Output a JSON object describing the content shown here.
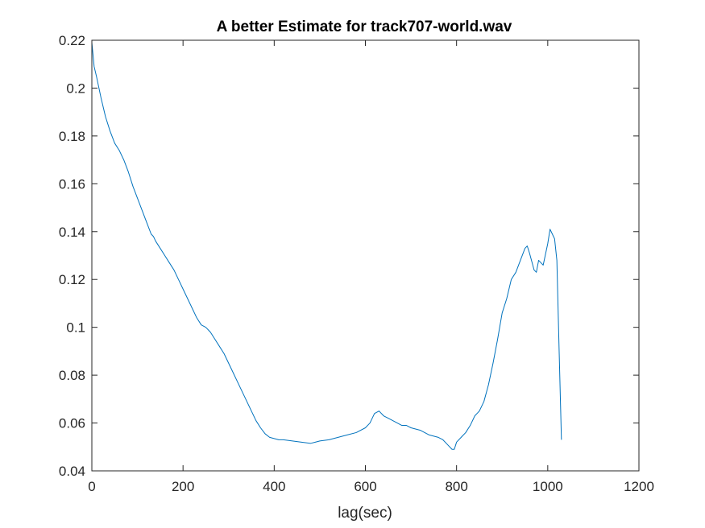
{
  "chart_data": {
    "type": "line",
    "title": "A better Estimate for track707-world.wav",
    "xlabel": "lag(sec)",
    "ylabel": "",
    "xlim": [
      0,
      1200
    ],
    "ylim": [
      0.04,
      0.22
    ],
    "xticks": [
      0,
      200,
      400,
      600,
      800,
      1000,
      1200
    ],
    "xtick_labels": [
      "0",
      "200",
      "400",
      "600",
      "800",
      "1000",
      "1200"
    ],
    "yticks": [
      0.04,
      0.06,
      0.08,
      0.1,
      0.12,
      0.14,
      0.16,
      0.18,
      0.2,
      0.22
    ],
    "ytick_labels": [
      "0.04",
      "0.06",
      "0.08",
      "0.1",
      "0.12",
      "0.14",
      "0.16",
      "0.18",
      "0.2",
      "0.22"
    ],
    "grid": false,
    "line_color": "#0072BD",
    "series": [
      {
        "x": [
          0,
          5,
          10,
          20,
          30,
          40,
          50,
          60,
          70,
          80,
          90,
          100,
          110,
          120,
          130,
          135,
          140,
          150,
          160,
          170,
          180,
          190,
          200,
          210,
          220,
          230,
          240,
          250,
          260,
          270,
          280,
          290,
          300,
          310,
          320,
          330,
          340,
          350,
          360,
          370,
          380,
          390,
          400,
          410,
          420,
          440,
          460,
          480,
          490,
          500,
          520,
          540,
          560,
          580,
          600,
          610,
          620,
          630,
          640,
          650,
          660,
          670,
          680,
          690,
          700,
          720,
          740,
          760,
          770,
          780,
          790,
          795,
          800,
          810,
          820,
          830,
          840,
          850,
          860,
          870,
          880,
          890,
          900,
          910,
          920,
          930,
          940,
          950,
          955,
          960,
          970,
          975,
          980,
          985,
          990,
          1000,
          1005,
          1010,
          1015,
          1020,
          1025,
          1030
        ],
        "y": [
          0.219,
          0.209,
          0.205,
          0.196,
          0.188,
          0.182,
          0.177,
          0.174,
          0.17,
          0.165,
          0.159,
          0.154,
          0.149,
          0.144,
          0.139,
          0.138,
          0.136,
          0.133,
          0.13,
          0.127,
          0.124,
          0.12,
          0.116,
          0.112,
          0.108,
          0.104,
          0.101,
          0.1,
          0.098,
          0.095,
          0.092,
          0.089,
          0.085,
          0.081,
          0.077,
          0.073,
          0.069,
          0.065,
          0.061,
          0.058,
          0.0555,
          0.054,
          0.0535,
          0.053,
          0.053,
          0.0525,
          0.052,
          0.0515,
          0.052,
          0.0525,
          0.053,
          0.054,
          0.055,
          0.056,
          0.058,
          0.06,
          0.064,
          0.065,
          0.063,
          0.062,
          0.061,
          0.06,
          0.059,
          0.059,
          0.058,
          0.057,
          0.055,
          0.054,
          0.053,
          0.051,
          0.049,
          0.049,
          0.052,
          0.054,
          0.056,
          0.059,
          0.063,
          0.065,
          0.069,
          0.076,
          0.085,
          0.095,
          0.106,
          0.112,
          0.12,
          0.123,
          0.128,
          0.133,
          0.134,
          0.131,
          0.124,
          0.123,
          0.128,
          0.127,
          0.126,
          0.135,
          0.141,
          0.139,
          0.137,
          0.128,
          0.09,
          0.053
        ]
      }
    ]
  }
}
